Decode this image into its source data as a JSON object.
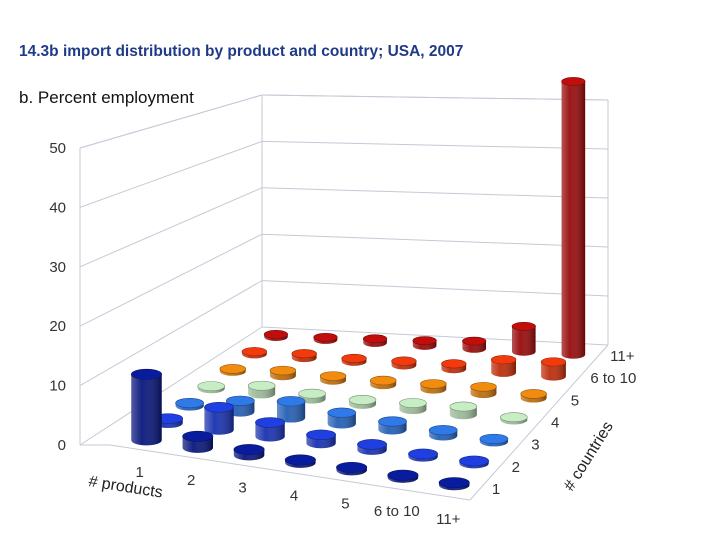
{
  "chart_data": {
    "type": "bar",
    "style": "3d-cylinder",
    "title": "14.3b import distribution by product and country; USA, 2007",
    "subtitle": "b. Percent employment",
    "xlabel": "# products",
    "ylabel": "# countries",
    "zlim": [
      0,
      50
    ],
    "z_ticks": [
      "0",
      "10",
      "20",
      "30",
      "40",
      "50"
    ],
    "products": [
      "1",
      "2",
      "3",
      "4",
      "5",
      "6 to 10",
      "11+"
    ],
    "countries": [
      "1",
      "2",
      "3",
      "4",
      "5",
      "6 to 10",
      "11+"
    ],
    "values": [
      [
        11.5,
        2.0,
        1.0,
        0.5,
        0.5,
        0.4,
        0.4
      ],
      [
        0.8,
        4.0,
        2.5,
        1.5,
        1.0,
        0.5,
        0.4
      ],
      [
        0.5,
        2.0,
        3.0,
        2.0,
        1.5,
        1.0,
        0.5
      ],
      [
        0.4,
        1.5,
        1.0,
        0.8,
        1.2,
        1.5,
        0.5
      ],
      [
        0.3,
        1.0,
        0.8,
        0.8,
        1.0,
        1.3,
        0.8
      ],
      [
        0.3,
        0.8,
        0.6,
        0.8,
        1.0,
        2.5,
        2.8
      ],
      [
        0.4,
        0.5,
        0.8,
        1.0,
        1.5,
        5.0,
        54.0
      ]
    ],
    "colors": {
      "dark_blue": "#0a1c9e",
      "blue": "#1f3fe0",
      "medium_blue": "#2f7ae8",
      "light_green": "#c7edc4",
      "orange": "#f28c0f",
      "red_orange": "#f23a0d",
      "dark_red": "#c20d0d",
      "grid": "#c4cad6"
    }
  }
}
